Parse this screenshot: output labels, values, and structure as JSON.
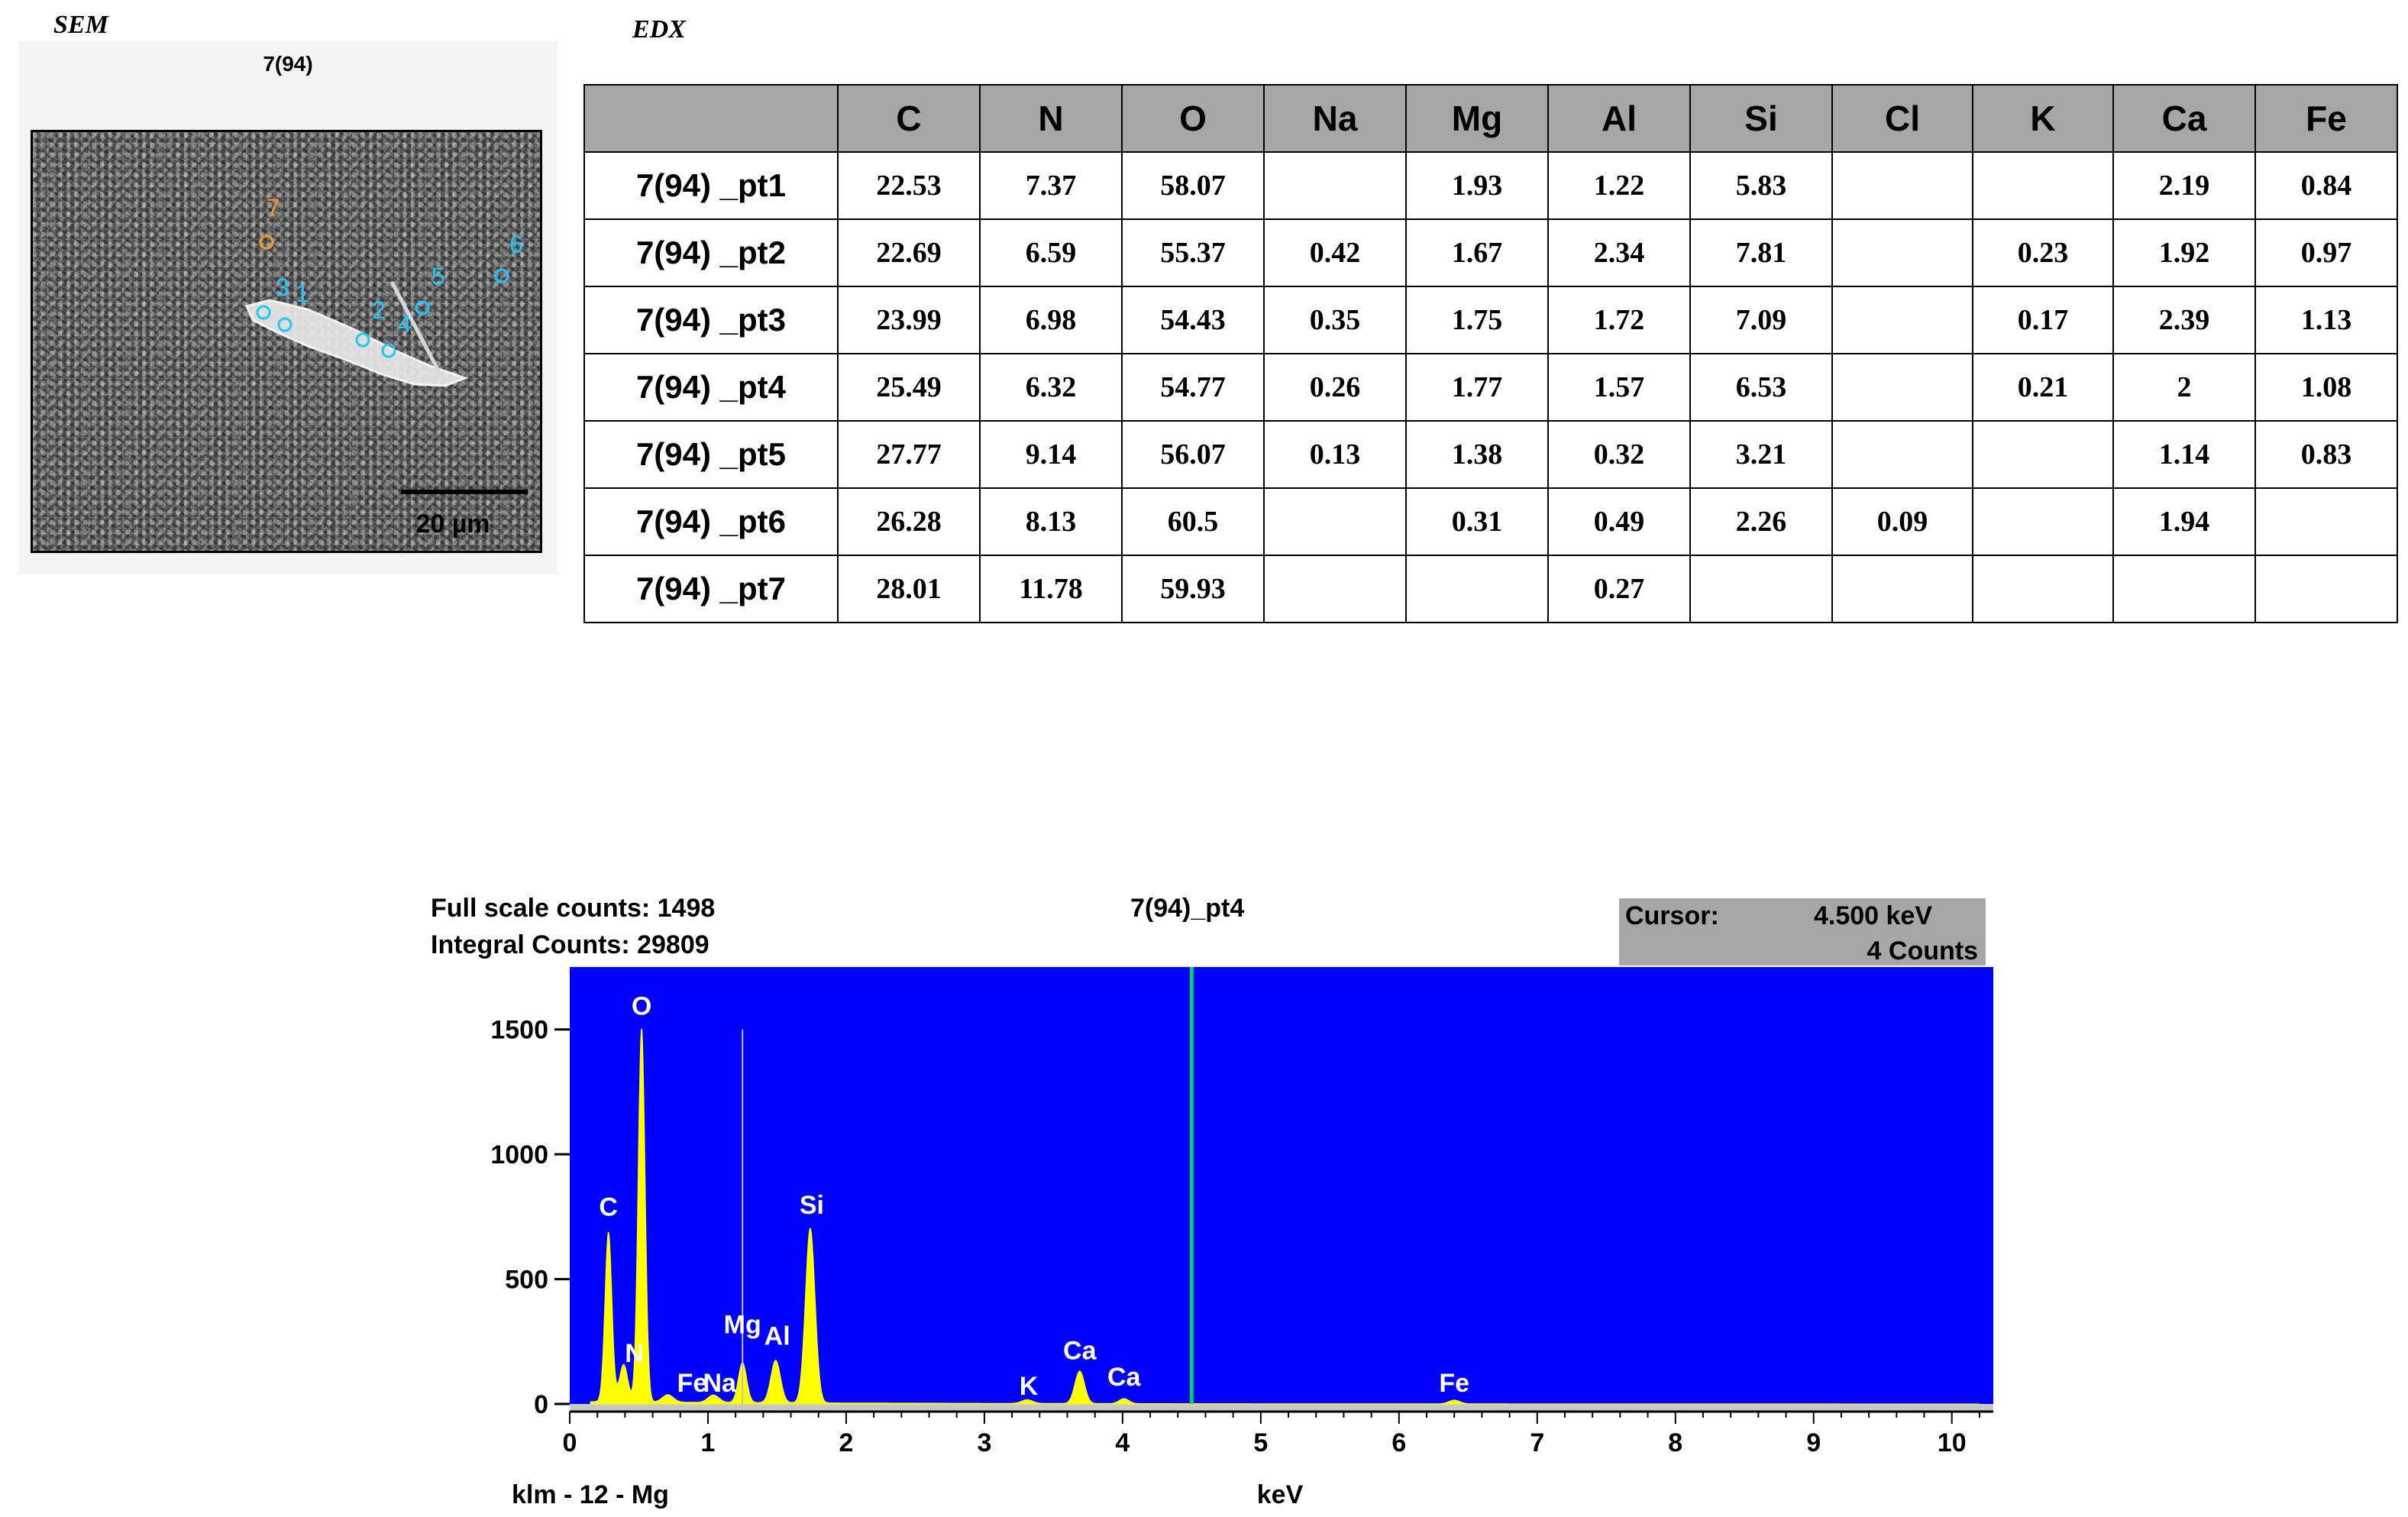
{
  "labels": {
    "sem": "SEM",
    "edx": "EDX"
  },
  "sem": {
    "title": "7(94)",
    "scale_bar": "20 µm",
    "markers": [
      "7",
      "3",
      "1",
      "2",
      "4",
      "5",
      "6"
    ]
  },
  "edx_table": {
    "columns": [
      "",
      "C",
      "N",
      "O",
      "Na",
      "Mg",
      "Al",
      "Si",
      "Cl",
      "K",
      "Ca",
      "Fe"
    ],
    "rows": [
      [
        "7(94) _pt1",
        "22.53",
        "7.37",
        "58.07",
        "",
        "1.93",
        "1.22",
        "5.83",
        "",
        "",
        "2.19",
        "0.84"
      ],
      [
        "7(94) _pt2",
        "22.69",
        "6.59",
        "55.37",
        "0.42",
        "1.67",
        "2.34",
        "7.81",
        "",
        "0.23",
        "1.92",
        "0.97"
      ],
      [
        "7(94) _pt3",
        "23.99",
        "6.98",
        "54.43",
        "0.35",
        "1.75",
        "1.72",
        "7.09",
        "",
        "0.17",
        "2.39",
        "1.13"
      ],
      [
        "7(94) _pt4",
        "25.49",
        "6.32",
        "54.77",
        "0.26",
        "1.77",
        "1.57",
        "6.53",
        "",
        "0.21",
        "2",
        "1.08"
      ],
      [
        "7(94) _pt5",
        "27.77",
        "9.14",
        "56.07",
        "0.13",
        "1.38",
        "0.32",
        "3.21",
        "",
        "",
        "1.14",
        "0.83"
      ],
      [
        "7(94) _pt6",
        "26.28",
        "8.13",
        "60.5",
        "",
        "0.31",
        "0.49",
        "2.26",
        "0.09",
        "",
        "1.94",
        ""
      ],
      [
        "7(94) _pt7",
        "28.01",
        "11.78",
        "59.93",
        "",
        "",
        "0.27",
        "",
        "",
        "",
        "",
        ""
      ]
    ]
  },
  "spectrum": {
    "full_scale": "Full scale counts: 1498",
    "integral": "Integral Counts: 29809",
    "sample": "7(94)_pt4",
    "cursor_label": "Cursor:",
    "cursor_value": "4.500 keV",
    "cursor_counts": "4 Counts",
    "footer_left": "klm - 12 - Mg",
    "xlabel": "keV",
    "colors": {
      "background": "#0000ff",
      "peaks": "#ffff00",
      "cursor": "#00d060",
      "text": "#ffffff"
    }
  },
  "chart_data": {
    "type": "area",
    "title": "7(94)_pt4",
    "xlabel": "keV",
    "ylabel": "",
    "xlim": [
      0,
      10.3
    ],
    "ylim": [
      0,
      1750
    ],
    "xticks": [
      0,
      1,
      2,
      3,
      4,
      5,
      6,
      7,
      8,
      9,
      10
    ],
    "yticks": [
      0,
      500,
      1000,
      1500
    ],
    "cursor_x": 4.5,
    "peaks": [
      {
        "label": "C",
        "x": 0.28,
        "y": 680
      },
      {
        "label": "N",
        "x": 0.39,
        "y": 150
      },
      {
        "label": "O",
        "x": 0.52,
        "y": 1498
      },
      {
        "label": "Fe",
        "x": 0.71,
        "y": 30
      },
      {
        "label": "Na",
        "x": 1.04,
        "y": 30
      },
      {
        "label": "Mg",
        "x": 1.25,
        "y": 160
      },
      {
        "label": "Al",
        "x": 1.49,
        "y": 170
      },
      {
        "label": "Si",
        "x": 1.74,
        "y": 700
      },
      {
        "label": "K",
        "x": 3.31,
        "y": 15
      },
      {
        "label": "Ca",
        "x": 3.69,
        "y": 130
      },
      {
        "label": "Ca",
        "x": 4.01,
        "y": 20
      },
      {
        "label": "Fe",
        "x": 6.4,
        "y": 15
      }
    ],
    "markers": [
      {
        "label": "Mg",
        "x": 1.25,
        "y": 1500
      }
    ]
  }
}
